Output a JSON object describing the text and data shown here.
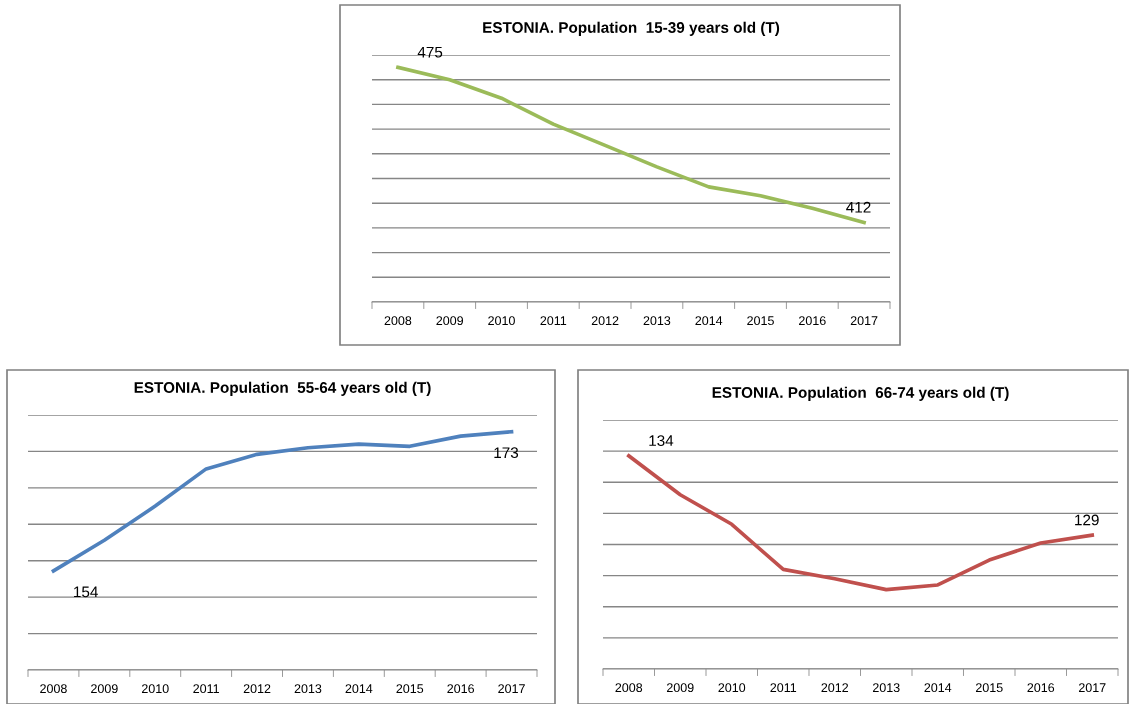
{
  "chart_data": [
    {
      "type": "line",
      "title": "ESTONIA. Population  15-39 years old (T)",
      "categories": [
        "2008",
        "2009",
        "2010",
        "2011",
        "2012",
        "2013",
        "2014",
        "2015",
        "2016",
        "2017"
      ],
      "series": [
        {
          "color": "#9bbb59",
          "values": [
            475,
            470,
            462.5,
            452,
            443.4,
            434.7,
            426.6,
            423,
            418,
            412.2
          ],
          "value_labels": [
            "475",
            null,
            null,
            null,
            null,
            null,
            null,
            null,
            null,
            "412"
          ]
        }
      ],
      "ylim": [
        380,
        480
      ],
      "yticks": [
        {
          "value": 380,
          "label": null
        },
        {
          "value": 390,
          "label": null
        },
        {
          "value": 400,
          "label": null
        },
        {
          "value": 410,
          "label": null
        },
        {
          "value": 420,
          "label": null
        },
        {
          "value": 430,
          "label": null
        },
        {
          "value": 440,
          "label": null
        },
        {
          "value": 450,
          "label": null
        },
        {
          "value": 460,
          "label": null
        },
        {
          "value": 470,
          "label": null
        },
        {
          "value": 480,
          "label": null
        }
      ],
      "grid": "y",
      "tick_labels": "x",
      "marker": "none",
      "line_style": "solid"
    },
    {
      "type": "line",
      "title": "ESTONIA. Population  55-64 years old (T)",
      "categories": [
        "2008",
        "2009",
        "2010",
        "2011",
        "2012",
        "2013",
        "2014",
        "2015",
        "2016",
        "2017"
      ],
      "series": [
        {
          "color": "#4f81bd",
          "values": [
            153.6,
            157.8,
            162.5,
            167.6,
            169.6,
            170.5,
            171,
            170.7,
            172.1,
            172.7
          ],
          "value_labels": [
            "154",
            null,
            null,
            null,
            null,
            null,
            null,
            null,
            null,
            "173"
          ]
        }
      ],
      "ylim": [
        140,
        175
      ],
      "yticks": [
        {
          "value": 140,
          "label": null
        },
        {
          "value": 145,
          "label": null
        },
        {
          "value": 150,
          "label": null
        },
        {
          "value": 155,
          "label": null
        },
        {
          "value": 160,
          "label": null
        },
        {
          "value": 165,
          "label": null
        },
        {
          "value": 170,
          "label": null
        },
        {
          "value": 175,
          "label": null
        }
      ],
      "grid": "y",
      "tick_labels": "x",
      "marker": "none",
      "line_style": "solid"
    },
    {
      "type": "line",
      "title": "ESTONIA. Population  66-74 years old (T)",
      "categories": [
        "2008",
        "2009",
        "2010",
        "2011",
        "2012",
        "2013",
        "2014",
        "2015",
        "2016",
        "2017"
      ],
      "series": [
        {
          "color": "#c0504d",
          "values": [
            133.7,
            131.2,
            129.3,
            126.4,
            125.8,
            125.1,
            125.4,
            127,
            128.1,
            128.6
          ],
          "value_labels": [
            "134",
            null,
            null,
            null,
            null,
            null,
            null,
            null,
            null,
            "129"
          ]
        }
      ],
      "ylim": [
        120,
        136
      ],
      "yticks": [
        {
          "value": 120,
          "label": null
        },
        {
          "value": 122,
          "label": null
        },
        {
          "value": 124,
          "label": null
        },
        {
          "value": 126,
          "label": null
        },
        {
          "value": 128,
          "label": null
        },
        {
          "value": 130,
          "label": null
        },
        {
          "value": 132,
          "label": null
        },
        {
          "value": 134,
          "label": null
        },
        {
          "value": 136,
          "label": null
        }
      ],
      "grid": "y",
      "tick_labels": "x",
      "marker": "none",
      "line_style": "solid"
    }
  ]
}
